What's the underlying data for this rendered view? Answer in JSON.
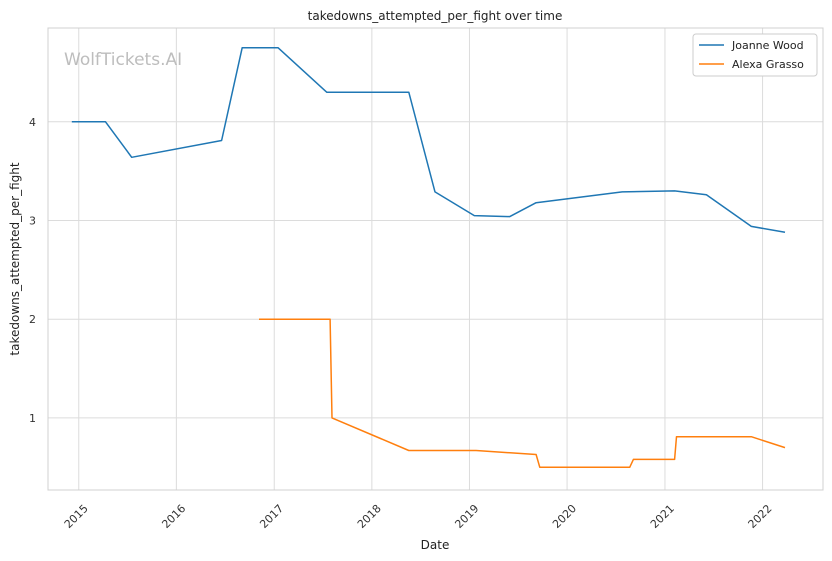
{
  "chart_data": {
    "type": "line",
    "title": "takedowns_attempted_per_fight over time",
    "xlabel": "Date",
    "ylabel": "takedowns_attempted_per_fight",
    "watermark": "WolfTickets.AI",
    "xlim": [
      "2014-09-08",
      "2022-08-15"
    ],
    "ylim": [
      0.27,
      4.95
    ],
    "x_ticks": [
      "2015",
      "2016",
      "2017",
      "2018",
      "2019",
      "2020",
      "2021",
      "2022"
    ],
    "y_ticks": [
      "1",
      "2",
      "3",
      "4"
    ],
    "grid": true,
    "legend_position": "top-right",
    "series": [
      {
        "name": "Joanne Wood",
        "color": "#1f77b4",
        "x": [
          "2014-12-06",
          "2015-04-11",
          "2015-07-18",
          "2016-06-18",
          "2016-09-03",
          "2017-01-15",
          "2017-07-16",
          "2018-05-19",
          "2018-08-25",
          "2019-01-19",
          "2019-06-01",
          "2019-09-07",
          "2020-07-25",
          "2021-02-06",
          "2021-06-05",
          "2021-11-20",
          "2022-03-26"
        ],
        "values": [
          4.0,
          4.0,
          3.64,
          3.81,
          4.75,
          4.75,
          4.3,
          4.3,
          3.29,
          3.05,
          3.04,
          3.18,
          3.29,
          3.3,
          3.26,
          2.94,
          2.88
        ]
      },
      {
        "name": "Alexa Grasso",
        "color": "#ff7f0e",
        "x": [
          "2016-11-05",
          "2017-07-29",
          "2017-08-05",
          "2018-05-19",
          "2019-01-26",
          "2019-09-07",
          "2019-09-21",
          "2020-08-22",
          "2020-09-05",
          "2021-02-06",
          "2021-02-13",
          "2021-11-20",
          "2022-03-26"
        ],
        "values": [
          2.0,
          2.0,
          1.0,
          0.67,
          0.67,
          0.63,
          0.5,
          0.5,
          0.58,
          0.58,
          0.81,
          0.81,
          0.7
        ]
      }
    ]
  }
}
